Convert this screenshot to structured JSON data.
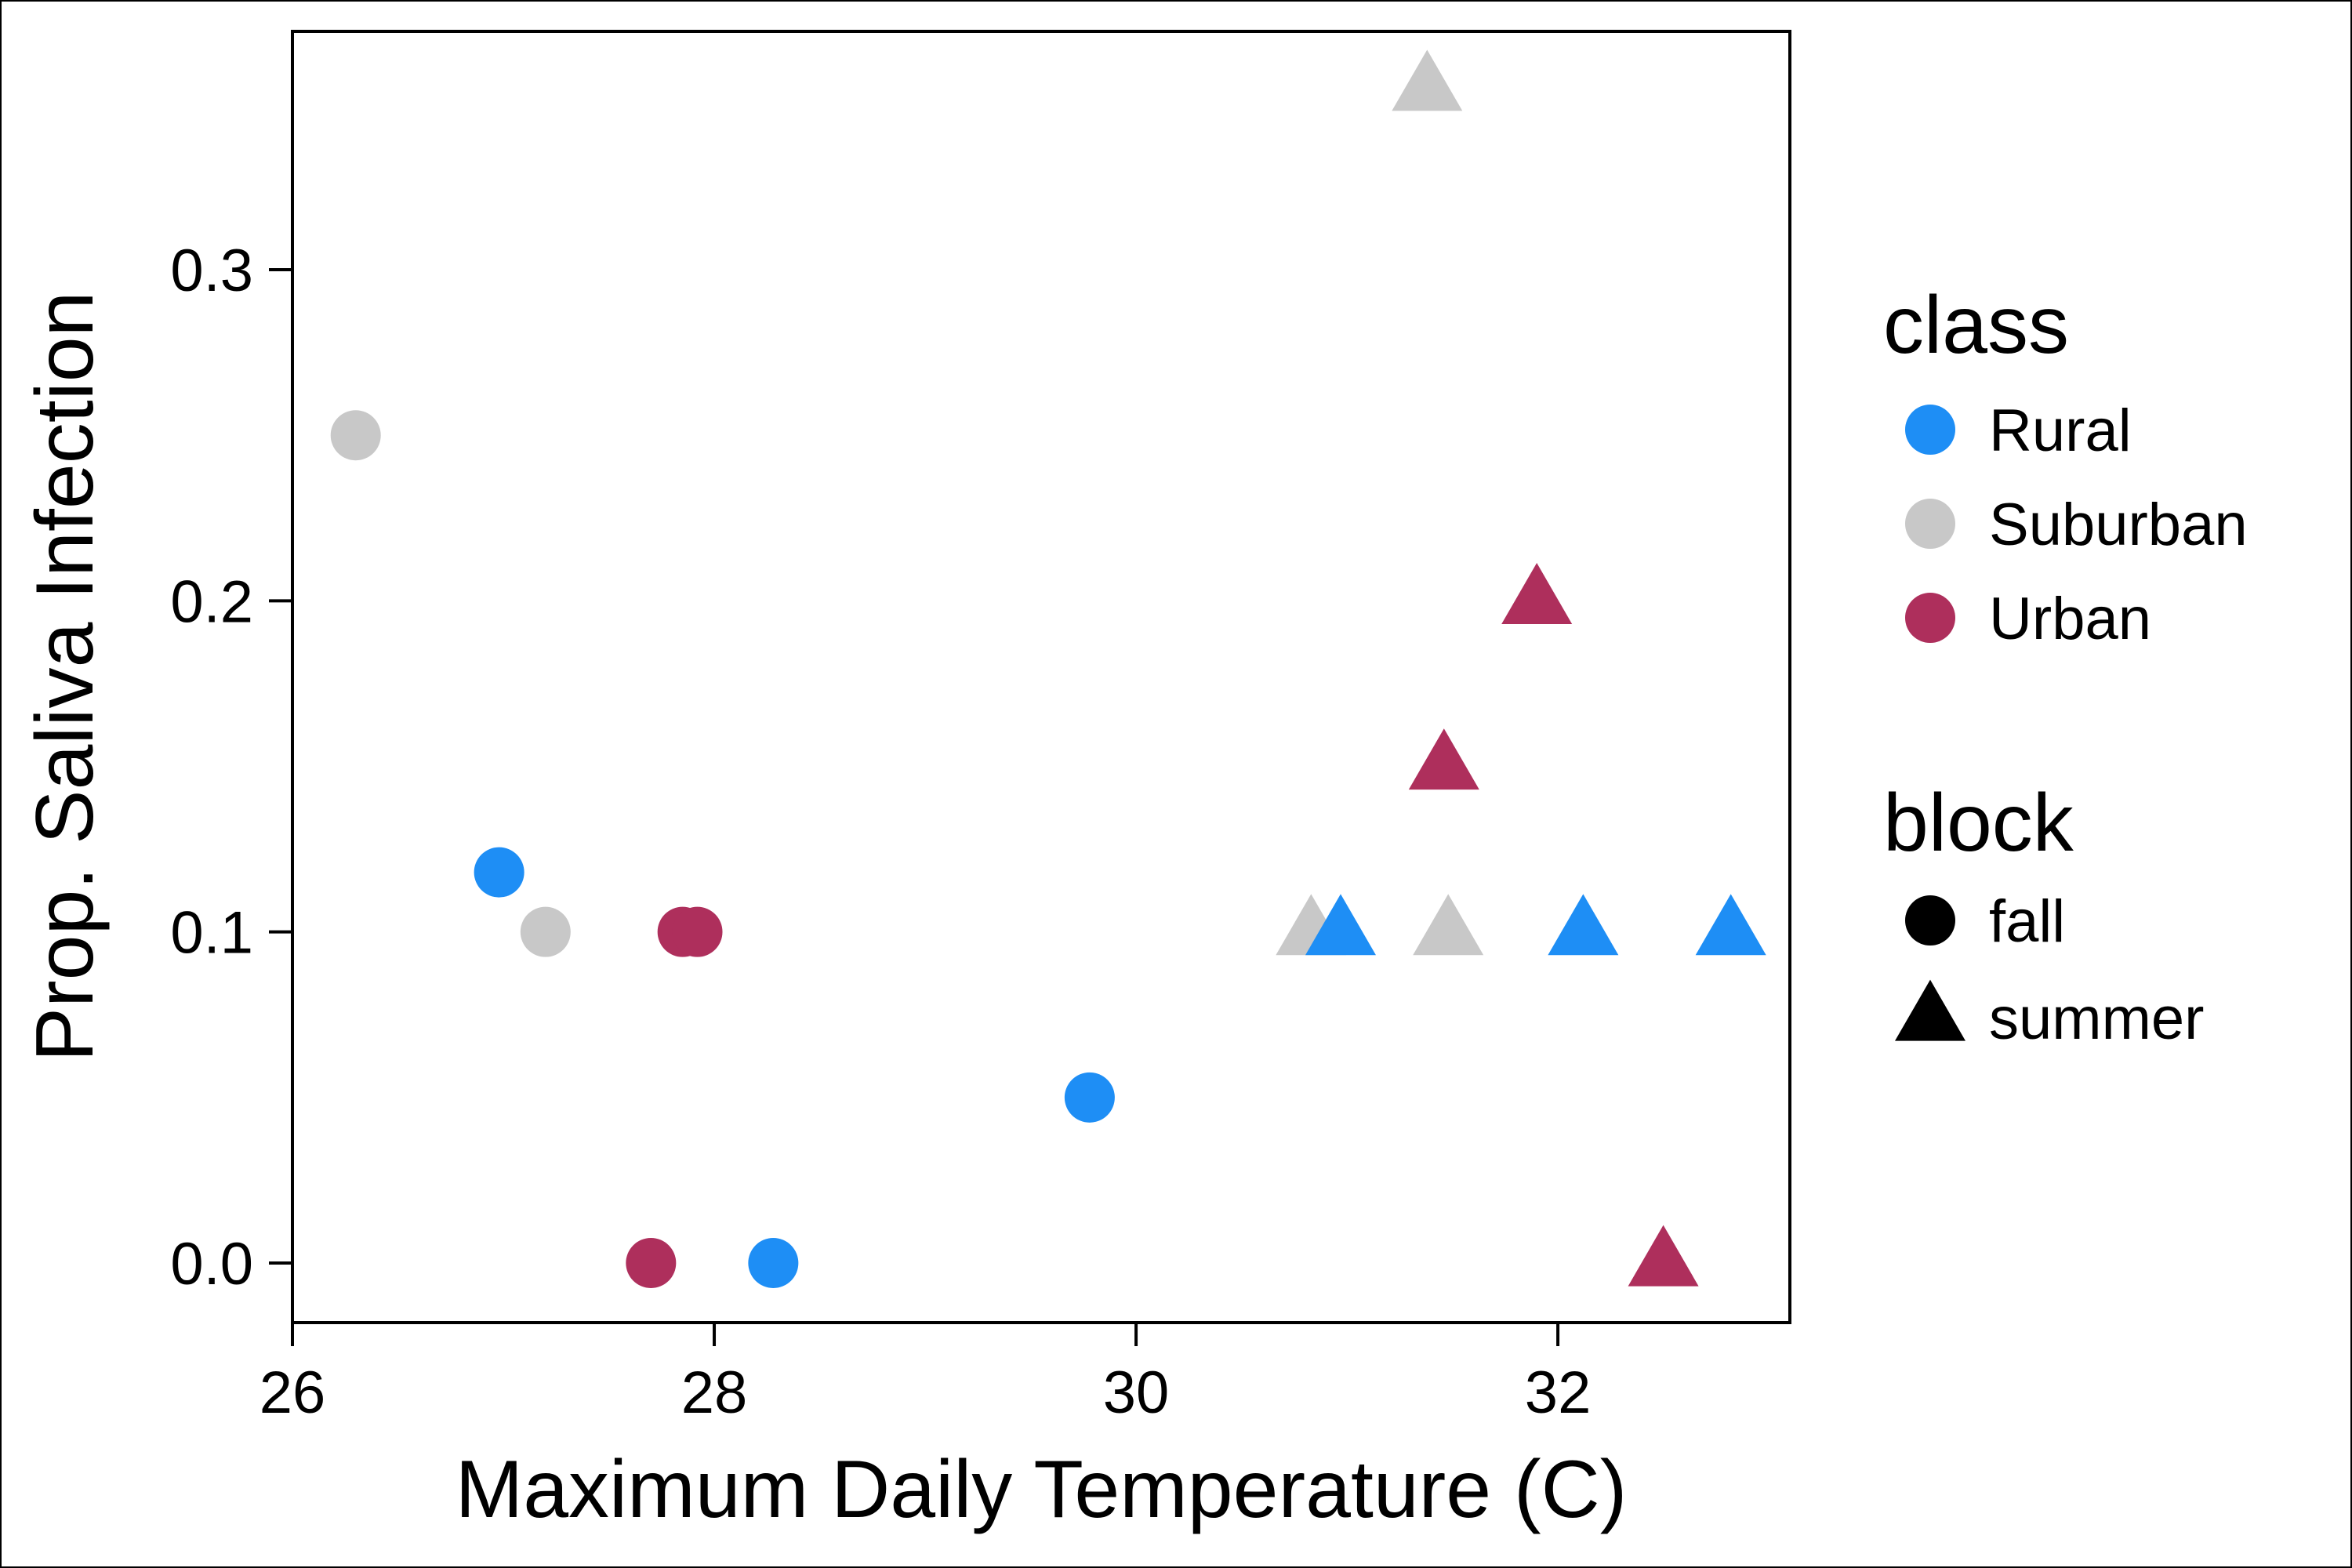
{
  "chart_data": {
    "type": "scatter",
    "xlabel": "Maximum Daily Temperature (C)",
    "ylabel": "Prop. Saliva Infection",
    "xlim": [
      26,
      33.1
    ],
    "ylim": [
      -0.018,
      0.372
    ],
    "x_ticks": [
      26,
      28,
      30,
      32
    ],
    "x_tick_labels": [
      "26",
      "28",
      "30",
      "32"
    ],
    "y_ticks": [
      0.0,
      0.1,
      0.2,
      0.3
    ],
    "y_tick_labels": [
      "0.0",
      "0.1",
      "0.2",
      "0.3"
    ],
    "grid": false,
    "legend_placement": "right",
    "legend": {
      "class_title": "class",
      "class_entries": [
        {
          "label": "Rural",
          "key": "Rural",
          "color": "#1E8EF5"
        },
        {
          "label": "Suburban",
          "key": "Suburban",
          "color": "#C8C8C8"
        },
        {
          "label": "Urban",
          "key": "Urban",
          "color": "#AE2F5C"
        }
      ],
      "block_title": "block",
      "block_entries": [
        {
          "label": "fall",
          "shape": "circle"
        },
        {
          "label": "summer",
          "shape": "triangle"
        }
      ]
    },
    "points": [
      {
        "x": 26.3,
        "y": 0.25,
        "class": "Suburban",
        "block": "fall"
      },
      {
        "x": 26.98,
        "y": 0.118,
        "class": "Rural",
        "block": "fall"
      },
      {
        "x": 27.2,
        "y": 0.1,
        "class": "Suburban",
        "block": "fall"
      },
      {
        "x": 27.7,
        "y": 0.0,
        "class": "Urban",
        "block": "fall"
      },
      {
        "x": 27.85,
        "y": 0.1,
        "class": "Urban",
        "block": "fall"
      },
      {
        "x": 27.92,
        "y": 0.1,
        "class": "Urban",
        "block": "fall"
      },
      {
        "x": 28.28,
        "y": 0.0,
        "class": "Rural",
        "block": "fall"
      },
      {
        "x": 29.78,
        "y": 0.05,
        "class": "Rural",
        "block": "fall"
      },
      {
        "x": 30.83,
        "y": 0.1,
        "class": "Suburban",
        "block": "summer"
      },
      {
        "x": 30.97,
        "y": 0.1,
        "class": "Rural",
        "block": "summer"
      },
      {
        "x": 31.38,
        "y": 0.355,
        "class": "Suburban",
        "block": "summer"
      },
      {
        "x": 31.46,
        "y": 0.15,
        "class": "Urban",
        "block": "summer"
      },
      {
        "x": 31.48,
        "y": 0.1,
        "class": "Suburban",
        "block": "summer"
      },
      {
        "x": 31.9,
        "y": 0.2,
        "class": "Urban",
        "block": "summer"
      },
      {
        "x": 32.12,
        "y": 0.1,
        "class": "Rural",
        "block": "summer"
      },
      {
        "x": 32.5,
        "y": 0.0,
        "class": "Urban",
        "block": "summer"
      },
      {
        "x": 32.82,
        "y": 0.1,
        "class": "Rural",
        "block": "summer"
      }
    ]
  }
}
